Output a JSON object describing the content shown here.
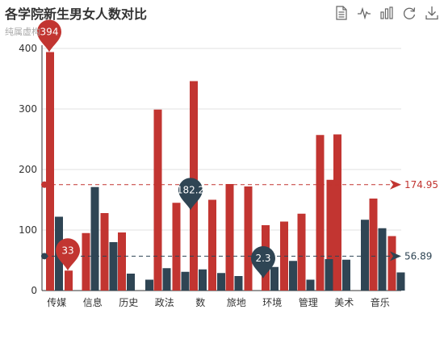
{
  "chart_data": {
    "type": "bar",
    "title": "各学院新生男女人数对比",
    "subtitle": "纯属虚构",
    "categories": [
      "传媒",
      "信息",
      "历史",
      "政法",
      "数",
      "旅地",
      "环境",
      "管理",
      "美术",
      "音乐"
    ],
    "series": [
      {
        "color": "#c23531",
        "values": [
          394,
          95,
          96,
          299,
          346,
          176,
          108,
          127,
          258,
          152
        ]
      },
      {
        "color": "#2f4554",
        "values": [
          122,
          171,
          28,
          37,
          35,
          24,
          39,
          18,
          51,
          103
        ]
      }
    ],
    "extra_bars": [
      {
        "series": 0,
        "group": 0,
        "value": 33,
        "slot": "after"
      },
      {
        "series": 0,
        "group": 1,
        "value": 128,
        "slot": "after"
      },
      {
        "series": 0,
        "group": 3,
        "value": 145,
        "slot": "after"
      },
      {
        "series": 0,
        "group": 4,
        "value": 150,
        "slot": "after"
      },
      {
        "series": 0,
        "group": 5,
        "value": 172,
        "slot": "after"
      },
      {
        "series": 0,
        "group": 6,
        "value": 114,
        "slot": "after"
      },
      {
        "series": 0,
        "group": 7,
        "value": 257,
        "slot": "after"
      },
      {
        "series": 0,
        "group": 7,
        "value": 183,
        "slot": "after2"
      },
      {
        "series": 0,
        "group": 9,
        "value": 90,
        "slot": "after"
      },
      {
        "series": 1,
        "group": 1,
        "value": 80,
        "slot": "after"
      },
      {
        "series": 1,
        "group": 2,
        "value": 18,
        "slot": "after"
      },
      {
        "series": 1,
        "group": 3,
        "value": 31,
        "slot": "after"
      },
      {
        "series": 1,
        "group": 4,
        "value": 29,
        "slot": "after"
      },
      {
        "series": 1,
        "group": 6,
        "value": 49,
        "slot": "after"
      },
      {
        "series": 1,
        "group": 7,
        "value": 52,
        "slot": "after"
      },
      {
        "series": 1,
        "group": 8,
        "value": 117,
        "slot": "after"
      },
      {
        "series": 1,
        "group": 9,
        "value": 30,
        "slot": "after"
      }
    ],
    "ylim": [
      0,
      400
    ],
    "yticks": [
      0,
      100,
      200,
      300,
      400
    ],
    "mark_points": [
      {
        "label": "394",
        "value": 394,
        "series": 0
      },
      {
        "label": "33",
        "value": 33,
        "series": 0
      },
      {
        "label": "182.2",
        "value": 182.2,
        "series": 1
      },
      {
        "label": "2.3",
        "value": 2.3,
        "series": 1
      }
    ],
    "mark_lines": [
      {
        "label": "174.95",
        "value": 174.95,
        "series": 0
      },
      {
        "label": "56.89",
        "value": 56.89,
        "series": 1
      }
    ],
    "grid": true
  },
  "toolbox": [
    {
      "icon": "data-view-icon"
    },
    {
      "icon": "line-chart-icon"
    },
    {
      "icon": "bar-chart-icon"
    },
    {
      "icon": "restore-icon"
    },
    {
      "icon": "save-image-icon"
    }
  ]
}
